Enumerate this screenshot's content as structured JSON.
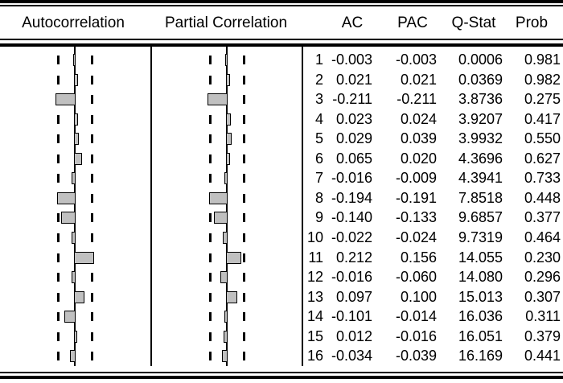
{
  "header": {
    "autocorrelation": "Autocorrelation",
    "partial_correlation": "Partial Correlation",
    "ac": "AC",
    "pac": "PAC",
    "q_stat": "Q-Stat",
    "prob": "Prob"
  },
  "chart_data": {
    "type": "bar",
    "orientation": "horizontal",
    "lags": [
      1,
      2,
      3,
      4,
      5,
      6,
      7,
      8,
      9,
      10,
      11,
      12,
      13,
      14,
      15,
      16
    ],
    "series": [
      {
        "name": "Autocorrelation",
        "values": [
          -0.003,
          0.021,
          -0.211,
          0.023,
          0.029,
          0.065,
          -0.016,
          -0.194,
          -0.14,
          -0.022,
          0.212,
          -0.016,
          0.097,
          -0.101,
          0.012,
          -0.034
        ]
      },
      {
        "name": "Partial Correlation",
        "values": [
          -0.003,
          0.021,
          -0.211,
          0.024,
          0.039,
          0.02,
          -0.009,
          -0.191,
          -0.133,
          -0.024,
          0.156,
          -0.06,
          0.1,
          -0.014,
          -0.016,
          -0.039
        ]
      }
    ],
    "q_stat": [
      0.0006,
      0.0369,
      3.8736,
      3.9207,
      3.9932,
      4.3696,
      4.3941,
      7.8518,
      9.6857,
      9.7319,
      14.055,
      14.08,
      15.013,
      16.036,
      16.051,
      16.169
    ],
    "prob": [
      0.981,
      0.982,
      0.275,
      0.417,
      0.55,
      0.627,
      0.733,
      0.448,
      0.377,
      0.464,
      0.23,
      0.296,
      0.307,
      0.311,
      0.379,
      0.441
    ],
    "confidence_band_dashed_lines": true,
    "zero_line": true
  },
  "table": {
    "rows": [
      {
        "lag": "1",
        "ac": "-0.003",
        "pac": "-0.003",
        "q": "0.0006",
        "p": "0.981"
      },
      {
        "lag": "2",
        "ac": "0.021",
        "pac": "0.021",
        "q": "0.0369",
        "p": "0.982"
      },
      {
        "lag": "3",
        "ac": "-0.211",
        "pac": "-0.211",
        "q": "3.8736",
        "p": "0.275"
      },
      {
        "lag": "4",
        "ac": "0.023",
        "pac": "0.024",
        "q": "3.9207",
        "p": "0.417"
      },
      {
        "lag": "5",
        "ac": "0.029",
        "pac": "0.039",
        "q": "3.9932",
        "p": "0.550"
      },
      {
        "lag": "6",
        "ac": "0.065",
        "pac": "0.020",
        "q": "4.3696",
        "p": "0.627"
      },
      {
        "lag": "7",
        "ac": "-0.016",
        "pac": "-0.009",
        "q": "4.3941",
        "p": "0.733"
      },
      {
        "lag": "8",
        "ac": "-0.194",
        "pac": "-0.191",
        "q": "7.8518",
        "p": "0.448"
      },
      {
        "lag": "9",
        "ac": "-0.140",
        "pac": "-0.133",
        "q": "9.6857",
        "p": "0.377"
      },
      {
        "lag": "10",
        "ac": "-0.022",
        "pac": "-0.024",
        "q": "9.7319",
        "p": "0.464"
      },
      {
        "lag": "11",
        "ac": "0.212",
        "pac": "0.156",
        "q": "14.055",
        "p": "0.230"
      },
      {
        "lag": "12",
        "ac": "-0.016",
        "pac": "-0.060",
        "q": "14.080",
        "p": "0.296"
      },
      {
        "lag": "13",
        "ac": "0.097",
        "pac": "0.100",
        "q": "15.013",
        "p": "0.307"
      },
      {
        "lag": "14",
        "ac": "-0.101",
        "pac": "-0.014",
        "q": "16.036",
        "p": "0.311"
      },
      {
        "lag": "15",
        "ac": "0.012",
        "pac": "-0.016",
        "q": "16.051",
        "p": "0.379"
      },
      {
        "lag": "16",
        "ac": "-0.034",
        "pac": "-0.039",
        "q": "16.169",
        "p": "0.441"
      }
    ]
  },
  "colors": {
    "bar_fill": "#c0c0c0",
    "line": "#000000",
    "background": "#ffffff"
  }
}
